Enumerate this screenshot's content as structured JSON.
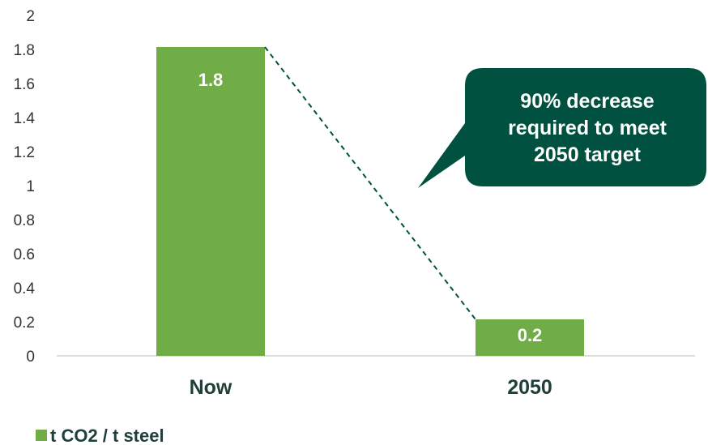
{
  "chart_data": {
    "type": "bar",
    "categories": [
      "Now",
      "2050"
    ],
    "series": [
      {
        "name": "t CO2 / t steel",
        "values": [
          1.8,
          0.2
        ],
        "color": "#70ad47"
      }
    ],
    "data_labels": [
      "1.8",
      "0.2"
    ],
    "y_ticks": [
      "0",
      "0.2",
      "0.4",
      "0.6",
      "0.8",
      "1",
      "1.2",
      "1.4",
      "1.6",
      "1.8",
      "2"
    ],
    "ylim": [
      0,
      2
    ],
    "grid": false,
    "legend": {
      "position": "bottom-left"
    },
    "annotation": {
      "lines": [
        "90% decrease",
        "required to meet",
        "2050 target"
      ],
      "color": "#00513f"
    }
  }
}
